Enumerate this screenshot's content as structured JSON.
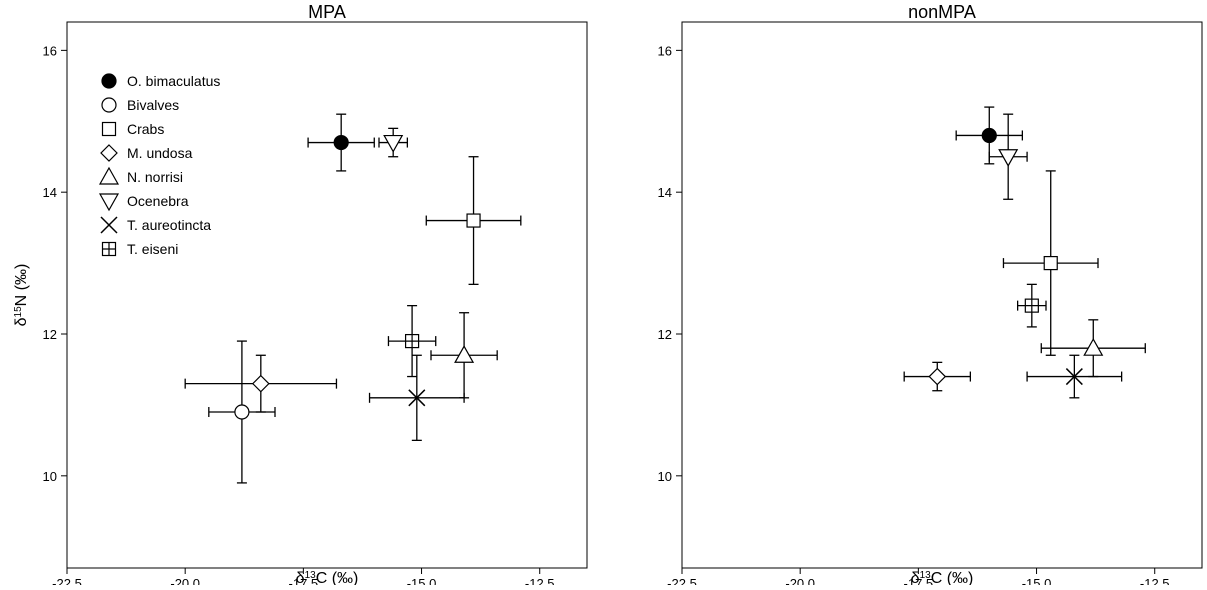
{
  "chart_data": [
    {
      "type": "scatter",
      "title": "MPA",
      "xlabel": "δ13C (‰)",
      "ylabel": "δ15N (‰)",
      "xlim": [
        -22.5,
        -11.5
      ],
      "ylim": [
        8.7,
        16.4
      ],
      "xticks": [
        -22.5,
        -20.0,
        -17.5,
        -15.0,
        -12.5
      ],
      "xtick_labels": [
        "-22.5",
        "-20.0",
        "-17.5",
        "-15.0",
        "-12.5"
      ],
      "yticks": [
        10,
        12,
        14,
        16
      ],
      "ytick_labels": [
        "10",
        "12",
        "14",
        "16"
      ],
      "grid": false,
      "legend_position": "top-left",
      "series": [
        {
          "name": "O. bimaculatus",
          "marker": "filled-circle",
          "x": -16.7,
          "y": 14.7,
          "xerr": 0.7,
          "yerr": 0.4
        },
        {
          "name": "Bivalves",
          "marker": "open-circle",
          "x": -18.8,
          "y": 10.9,
          "xerr": 0.7,
          "yerr": 1.0
        },
        {
          "name": "Crabs",
          "marker": "open-square",
          "x": -13.9,
          "y": 13.6,
          "xerr": 1.0,
          "yerr": 0.9
        },
        {
          "name": "M. undosa",
          "marker": "open-diamond",
          "x": -18.4,
          "y": 11.3,
          "xerr": 1.6,
          "yerr": 0.4
        },
        {
          "name": "N. norrisi",
          "marker": "open-triangle-up",
          "x": -14.1,
          "y": 11.7,
          "xerr": 0.7,
          "yerr": 0.6
        },
        {
          "name": "Ocenebra",
          "marker": "open-triangle-down",
          "x": -15.6,
          "y": 14.7,
          "xerr": 0.3,
          "yerr": 0.2
        },
        {
          "name": "T. aureotincta",
          "marker": "x-cross",
          "x": -15.1,
          "y": 11.1,
          "xerr": 1.0,
          "yerr": 0.6
        },
        {
          "name": "T. eiseni",
          "marker": "boxed-plus",
          "x": -15.2,
          "y": 11.9,
          "xerr": 0.5,
          "yerr": 0.5
        }
      ]
    },
    {
      "type": "scatter",
      "title": "nonMPA",
      "xlabel": "δ13C (‰)",
      "ylabel": "",
      "xlim": [
        -22.5,
        -11.5
      ],
      "ylim": [
        8.7,
        16.4
      ],
      "xticks": [
        -22.5,
        -20.0,
        -17.5,
        -15.0,
        -12.5
      ],
      "xtick_labels": [
        "-22.5",
        "-20.0",
        "-17.5",
        "-15.0",
        "-12.5"
      ],
      "yticks": [
        10,
        12,
        14,
        16
      ],
      "ytick_labels": [
        "10",
        "12",
        "14",
        "16"
      ],
      "grid": false,
      "series": [
        {
          "name": "O. bimaculatus",
          "marker": "filled-circle",
          "x": -16.0,
          "y": 14.8,
          "xerr": 0.7,
          "yerr": 0.4
        },
        {
          "name": "Crabs",
          "marker": "open-square",
          "x": -14.7,
          "y": 13.0,
          "xerr": 1.0,
          "yerr": 1.3
        },
        {
          "name": "M. undosa",
          "marker": "open-diamond",
          "x": -17.1,
          "y": 11.4,
          "xerr": 0.7,
          "yerr": 0.2
        },
        {
          "name": "N. norrisi",
          "marker": "open-triangle-up",
          "x": -13.8,
          "y": 11.8,
          "xerr": 1.1,
          "yerr": 0.4
        },
        {
          "name": "Ocenebra",
          "marker": "open-triangle-down",
          "x": -15.6,
          "y": 14.5,
          "xerr": 0.4,
          "yerr": 0.6
        },
        {
          "name": "T. aureotincta",
          "marker": "x-cross",
          "x": -14.2,
          "y": 11.4,
          "xerr": 1.0,
          "yerr": 0.3
        },
        {
          "name": "T. eiseni",
          "marker": "boxed-plus",
          "x": -15.1,
          "y": 12.4,
          "xerr": 0.3,
          "yerr": 0.3
        }
      ]
    }
  ]
}
